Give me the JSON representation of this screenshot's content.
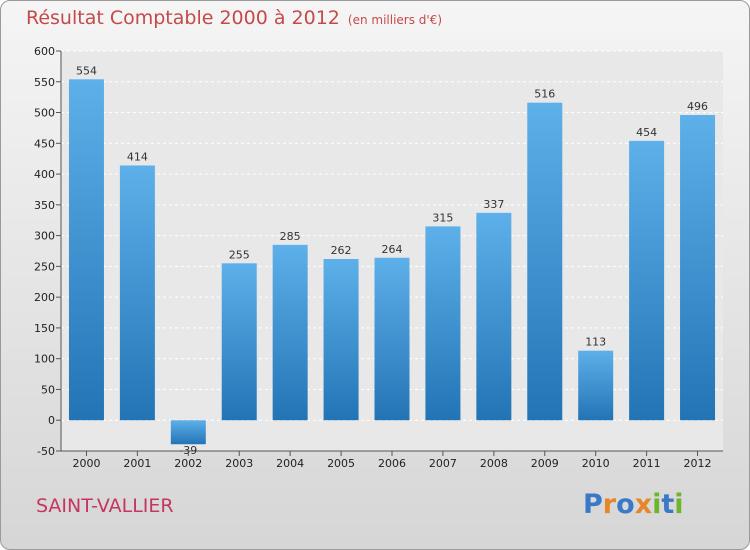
{
  "header": {
    "title": "Résultat Comptable 2000 à 2012",
    "subtitle": "(en milliers d'€)"
  },
  "footer": {
    "commune": "SAINT-VALLIER",
    "logo": [
      "P",
      "r",
      "o",
      "x",
      "i",
      "t",
      "i"
    ]
  },
  "colors": {
    "bar_top": "#5eb0ea",
    "bar_bottom": "#2274b5",
    "title": "#c44a4a",
    "commune": "#c4365f",
    "logo": [
      "#3a78c8",
      "#e5862a",
      "#3a78c8",
      "#e5862a",
      "#6cb52d",
      "#3a78c8",
      "#6cb52d"
    ]
  },
  "chart_data": {
    "type": "bar",
    "title": "Résultat Comptable 2000 à 2012",
    "subtitle": "(en milliers d'€)",
    "xlabel": "",
    "ylabel": "",
    "categories": [
      "2000",
      "2001",
      "2002",
      "2003",
      "2004",
      "2005",
      "2006",
      "2007",
      "2008",
      "2009",
      "2010",
      "2011",
      "2012"
    ],
    "values": [
      554,
      414,
      -39,
      255,
      285,
      262,
      264,
      315,
      337,
      516,
      113,
      454,
      496
    ],
    "ylim": [
      -50,
      600
    ],
    "yticks": [
      -50,
      0,
      50,
      100,
      150,
      200,
      250,
      300,
      350,
      400,
      450,
      500,
      550,
      600
    ],
    "grid": true
  }
}
